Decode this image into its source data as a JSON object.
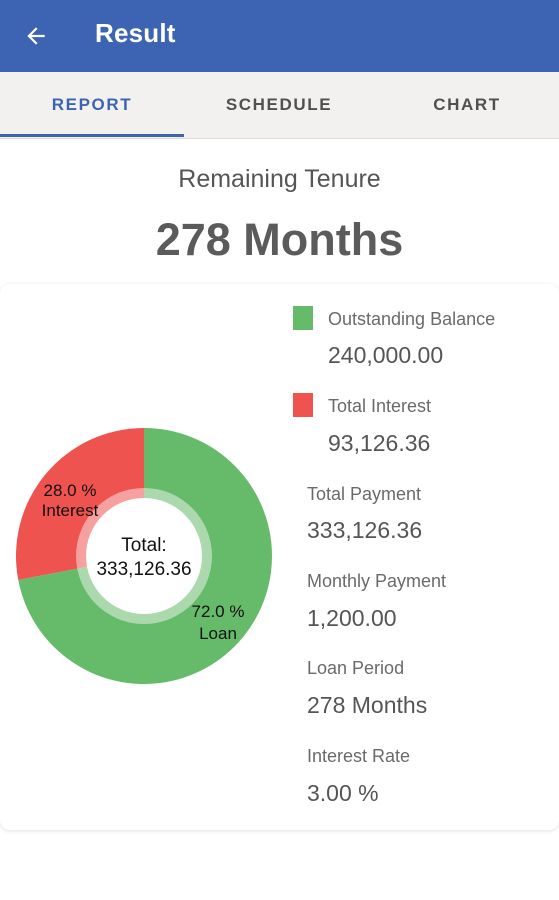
{
  "header": {
    "title": "Result",
    "back_icon": "arrow-left-icon"
  },
  "tabs": [
    {
      "label": "REPORT",
      "active": true
    },
    {
      "label": "SCHEDULE",
      "active": false
    },
    {
      "label": "CHART",
      "active": false
    }
  ],
  "summary": {
    "label": "Remaining Tenure",
    "value": "278 Months"
  },
  "legend": {
    "outstanding": {
      "label": "Outstanding Balance",
      "value": "240,000.00",
      "color": "#66bb6a"
    },
    "interest": {
      "label": "Total Interest",
      "value": "93,126.36",
      "color": "#ef5350"
    }
  },
  "stats": [
    {
      "label": "Total Payment",
      "value": "333,126.36"
    },
    {
      "label": "Monthly Payment",
      "value": "1,200.00"
    },
    {
      "label": "Loan Period",
      "value": "278 Months"
    },
    {
      "label": "Interest Rate",
      "value": "3.00 %"
    }
  ],
  "chart_data": {
    "type": "pie",
    "center_label": "Total:",
    "center_value": "333,126.36",
    "slices": [
      {
        "name": "Interest",
        "percent_label": "28.0 %",
        "value": 28.0,
        "color": "#ef5350"
      },
      {
        "name": "Loan",
        "percent_label": "72.0 %",
        "value": 72.0,
        "color": "#66bb6a"
      }
    ]
  }
}
